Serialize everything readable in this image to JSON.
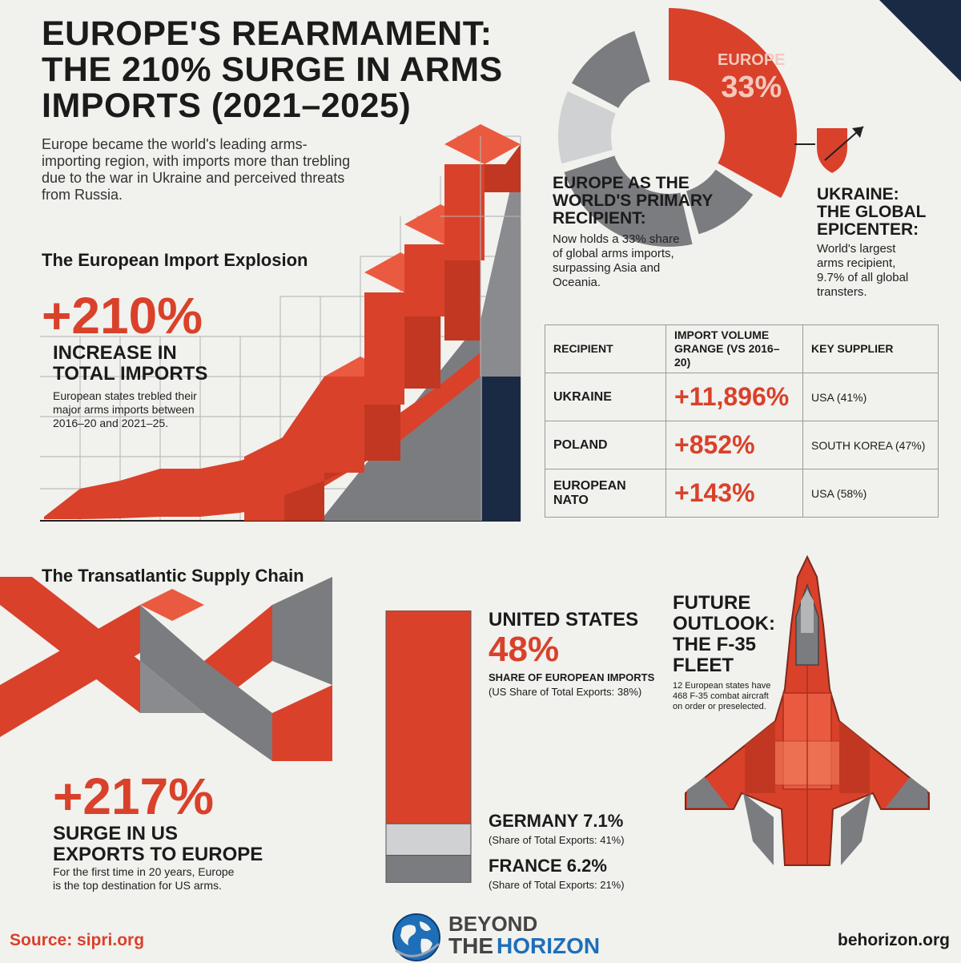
{
  "header": {
    "title_lines": [
      "EUROPE'S REARMAMENT:",
      "THE 210% SURGE IN ARMS",
      "IMPORTS (2021–2025)"
    ],
    "intro": "Europe became the world's leading arms-importing region, with imports more than trebling due to the war in Ukraine and perceived threats from Russia."
  },
  "import_explosion": {
    "heading": "The European Import Explosion",
    "big_number": "+210%",
    "label_lines": [
      "INCREASE IN",
      "TOTAL IMPORTS"
    ],
    "description": "European states trebled their major arms imports between 2016–20 and 2021–25."
  },
  "primary_recipient": {
    "pie_label": "EUROPE",
    "pie_value": "33%",
    "heading_lines": [
      "EUROPE AS THE",
      "WORLD'S PRIMARY",
      "RECIPIENT:"
    ],
    "description": "Now holds a 33% share of global arms imports, surpassing Asia and Oceania."
  },
  "ukraine": {
    "heading_lines": [
      "UKRAINE:",
      "THE GLOBAL",
      "EPICENTER:"
    ],
    "description": "World's largest arms recipient, 9.7% of all global transters."
  },
  "recipient_table": {
    "headers": [
      "RECIPIENT",
      "IMPORT VOLUME GRANGE (VS 2016–20)",
      "KEY SUPPLIER"
    ],
    "rows": [
      {
        "recipient": "UKRAINE",
        "change": "+11,896%",
        "supplier": "USA (41%)"
      },
      {
        "recipient": "POLAND",
        "change": "+852%",
        "supplier": "SOUTH KOREA (47%)"
      },
      {
        "recipient": "EUROPEAN NATO",
        "change": "+143%",
        "supplier": "USA (58%)"
      }
    ]
  },
  "supply_chain": {
    "heading": "The Transatlantic Supply Chain",
    "big_number": "+217%",
    "label_lines": [
      "SURGE IN US",
      "EXPORTS TO EUROPE"
    ],
    "description": "For the first time in 20 years, Europe is the top destination for US arms.",
    "us": {
      "name": "UNITED STATES",
      "value": "48%",
      "label": "SHARE OF EUROPEAN IMPORTS",
      "note": "(US Share of Total Exports: 38%)"
    },
    "germany": {
      "name": "GERMANY 7.1%",
      "note": "(Share of Total Exports: 41%)"
    },
    "france": {
      "name": "FRANCE 6.2%",
      "note": "(Share of Total Exports: 21%)"
    }
  },
  "outlook": {
    "heading_lines": [
      "FUTURE",
      "OUTLOOK:",
      "THE F-35",
      "FLEET"
    ],
    "description": "12 European states have 468 F-35 combat aircraft on order or preselected."
  },
  "footer": {
    "source": "Source: sipri.org",
    "logo_line1": "BEYOND",
    "logo_line2a": "THE",
    "logo_line2b": "HORIZON",
    "site": "behorizon.org"
  },
  "chart_data": [
    {
      "type": "pie",
      "title": "",
      "labels": [
        "EUROPE"
      ],
      "values": [
        33
      ],
      "value_labels": [
        "33%"
      ],
      "colors": {
        "highlight": "#d9412a",
        "other": "#7b7c80",
        "light": "#d0d1d3"
      }
    },
    {
      "type": "bar",
      "title": "",
      "orientation": "stacked-vertical",
      "series": [
        {
          "name": "UNITED STATES",
          "values": [
            48
          ]
        },
        {
          "name": "GERMANY",
          "values": [
            7.1
          ]
        },
        {
          "name": "FRANCE",
          "values": [
            6.2
          ]
        }
      ]
    }
  ],
  "colors": {
    "accent": "#d9412a",
    "accent_light": "#ea5a40",
    "gray": "#7b7c80",
    "light_gray": "#cfd0d2",
    "navy": "#1b2a44",
    "text": "#1b1b1b"
  }
}
